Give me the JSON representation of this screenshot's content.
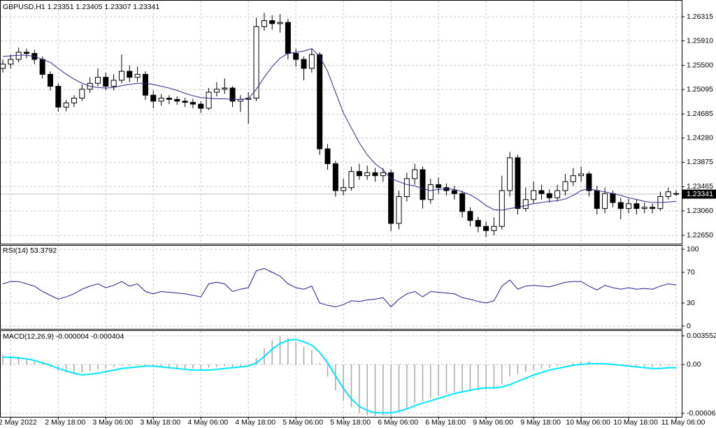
{
  "chart_data": [
    {
      "type": "candlestick",
      "title": "GBPUSD,H1  1.23351 1.23405 1.23307 1.23341",
      "categories": [
        null,
        "2 May 2022",
        null,
        null,
        null,
        null,
        null,
        "2 May 18:00",
        null,
        null,
        null,
        null,
        null,
        "3 May 06:00",
        null,
        null,
        null,
        null,
        null,
        "3 May 18:00",
        null,
        null,
        null,
        null,
        null,
        "4 May 06:00",
        null,
        null,
        null,
        null,
        null,
        "4 May 18:00",
        null,
        null,
        null,
        null,
        null,
        "5 May 06:00",
        null,
        null,
        null,
        null,
        null,
        "5 May 18:00",
        null,
        null,
        null,
        null,
        null,
        "6 May 06:00",
        null,
        null,
        null,
        null,
        null,
        "6 May 18:00",
        null,
        null,
        null,
        null,
        null,
        "9 May 06:00",
        null,
        null,
        null,
        null,
        null,
        "9 May 18:00",
        null,
        null,
        null,
        null,
        null,
        "10 May 06:00",
        null,
        null,
        null,
        null,
        null,
        "10 May 18:00",
        null,
        null,
        null,
        null,
        null,
        "11 May 06:00"
      ],
      "open": [
        1.2545,
        1.2552,
        1.256,
        1.2572,
        1.257,
        1.256,
        1.2535,
        1.2515,
        1.248,
        1.2487,
        1.2495,
        1.251,
        1.252,
        1.253,
        1.2515,
        1.2525,
        1.254,
        1.253,
        1.2535,
        1.25,
        1.249,
        1.2495,
        1.2493,
        1.249,
        1.2488,
        1.2485,
        1.2478,
        1.2505,
        1.251,
        1.2512,
        1.249,
        1.2493,
        1.2495,
        1.2615,
        1.2625,
        1.262,
        1.2622,
        1.257,
        1.256,
        1.2545,
        1.2568,
        1.241,
        1.2385,
        1.234,
        1.2345,
        1.2372,
        1.2365,
        1.237,
        1.2365,
        1.237,
        1.2285,
        1.233,
        1.236,
        1.2375,
        1.2325,
        1.235,
        1.2345,
        1.234,
        1.2335,
        1.2305,
        1.229,
        1.228,
        1.2273,
        1.228,
        1.234,
        1.2395,
        1.231,
        1.2325,
        1.234,
        1.2335,
        1.2328,
        1.234,
        1.2355,
        1.2365,
        1.2368,
        1.234,
        1.231,
        1.2335,
        1.232,
        1.231,
        1.2318,
        1.231,
        1.2312,
        1.231,
        1.233,
        1.23351
      ],
      "high": [
        1.256,
        1.2568,
        1.258,
        1.2578,
        1.2576,
        1.2565,
        1.254,
        1.252,
        1.2492,
        1.25,
        1.2518,
        1.253,
        1.2545,
        1.2538,
        1.2535,
        1.2568,
        1.255,
        1.2548,
        1.254,
        1.2508,
        1.2502,
        1.25,
        1.2498,
        1.2496,
        1.2494,
        1.249,
        1.2512,
        1.2522,
        1.2528,
        1.2515,
        1.25,
        1.2505,
        1.263,
        1.2638,
        1.2634,
        1.2636,
        1.2628,
        1.2578,
        1.2565,
        1.2578,
        1.2572,
        1.2418,
        1.239,
        1.236,
        1.238,
        1.2385,
        1.2382,
        1.2378,
        1.2378,
        1.2375,
        1.234,
        1.237,
        1.2385,
        1.238,
        1.236,
        1.2362,
        1.2352,
        1.2348,
        1.234,
        1.2312,
        1.2296,
        1.2288,
        1.2295,
        1.2365,
        1.2405,
        1.24,
        1.2345,
        1.2355,
        1.235,
        1.2342,
        1.235,
        1.2368,
        1.2378,
        1.238,
        1.2372,
        1.2348,
        1.2345,
        1.234,
        1.2328,
        1.2326,
        1.2325,
        1.232,
        1.2318,
        1.2338,
        1.2345,
        1.23405
      ],
      "low": [
        1.2538,
        1.2545,
        1.2555,
        1.2562,
        1.2552,
        1.2528,
        1.2508,
        1.2472,
        1.2473,
        1.248,
        1.249,
        1.2504,
        1.2515,
        1.2508,
        1.2508,
        1.252,
        1.2522,
        1.2522,
        1.2492,
        1.2478,
        1.2482,
        1.2485,
        1.2484,
        1.248,
        1.2478,
        1.247,
        1.2475,
        1.2498,
        1.2502,
        1.248,
        1.2472,
        1.2452,
        1.249,
        1.2608,
        1.261,
        1.2605,
        1.256,
        1.2548,
        1.2525,
        1.2538,
        1.24,
        1.2375,
        1.233,
        1.2332,
        1.234,
        1.2358,
        1.2358,
        1.2355,
        1.2355,
        1.2272,
        1.2275,
        1.2322,
        1.235,
        1.231,
        1.2318,
        1.2335,
        1.2332,
        1.2325,
        1.2295,
        1.228,
        1.227,
        1.2262,
        1.2265,
        1.2275,
        1.233,
        1.23,
        1.2305,
        1.2318,
        1.2325,
        1.232,
        1.2322,
        1.2332,
        1.2348,
        1.2355,
        1.233,
        1.23,
        1.2302,
        1.2312,
        1.2292,
        1.2302,
        1.23,
        1.2302,
        1.2302,
        1.2306,
        1.2325,
        1.23307
      ],
      "close": [
        1.2552,
        1.256,
        1.2572,
        1.257,
        1.256,
        1.2535,
        1.2515,
        1.248,
        1.2487,
        1.2495,
        1.251,
        1.252,
        1.253,
        1.2515,
        1.2525,
        1.254,
        1.253,
        1.2535,
        1.25,
        1.249,
        1.2495,
        1.2493,
        1.249,
        1.2488,
        1.2485,
        1.2478,
        1.2505,
        1.251,
        1.2512,
        1.249,
        1.2493,
        1.2495,
        1.2615,
        1.2625,
        1.262,
        1.2622,
        1.257,
        1.256,
        1.2545,
        1.2568,
        1.241,
        1.2385,
        1.234,
        1.2345,
        1.2372,
        1.2365,
        1.237,
        1.2365,
        1.237,
        1.2285,
        1.233,
        1.236,
        1.2375,
        1.2325,
        1.235,
        1.2345,
        1.234,
        1.2335,
        1.2305,
        1.229,
        1.228,
        1.2273,
        1.228,
        1.234,
        1.2395,
        1.231,
        1.2325,
        1.234,
        1.2335,
        1.2328,
        1.234,
        1.2355,
        1.2365,
        1.2368,
        1.234,
        1.231,
        1.2335,
        1.232,
        1.231,
        1.2318,
        1.231,
        1.2312,
        1.231,
        1.233,
        1.2338,
        1.23341
      ],
      "overlay": {
        "color": "#2a2a8c",
        "values": [
          1.2565,
          1.2566,
          1.2567,
          1.2567,
          1.2565,
          1.256,
          1.2555,
          1.2545,
          1.2535,
          1.2527,
          1.252,
          1.2515,
          1.2513,
          1.2512,
          1.2513,
          1.2516,
          1.2518,
          1.252,
          1.252,
          1.2518,
          1.2515,
          1.2512,
          1.2508,
          1.2503,
          1.2499,
          1.2496,
          1.2495,
          1.2494,
          1.2494,
          1.2493,
          1.2493,
          1.2494,
          1.251,
          1.253,
          1.2548,
          1.2562,
          1.257,
          1.2572,
          1.2574,
          1.2578,
          1.2565,
          1.254,
          1.2505,
          1.247,
          1.2445,
          1.242,
          1.24,
          1.2385,
          1.2375,
          1.236,
          1.2355,
          1.235,
          1.2348,
          1.2343,
          1.234,
          1.2342,
          1.2343,
          1.2342,
          1.2338,
          1.2333,
          1.2325,
          1.2315,
          1.2308,
          1.2307,
          1.231,
          1.2312,
          1.2315,
          1.2318,
          1.232,
          1.2322,
          1.2323,
          1.2326,
          1.2332,
          1.234,
          1.2343,
          1.234,
          1.2338,
          1.2335,
          1.2332,
          1.2328,
          1.2325,
          1.2322,
          1.232,
          1.232,
          1.2321,
          1.2322
        ]
      },
      "last_price": 1.23341,
      "ylim": [
        1.2251,
        1.26596
      ],
      "yticks": [
        1.26315,
        {
          "value": 1.2591,
          "label": "1.25910"
        },
        {
          "value": 1.255,
          "label": "1.25500"
        },
        1.25095,
        1.24685,
        {
          "value": 1.2428,
          "label": "1.24280"
        },
        1.23875,
        1.23465,
        {
          "value": 1.2306,
          "label": "1.23060"
        },
        {
          "value": 1.2265,
          "label": "1.22650"
        }
      ],
      "grid": true
    },
    {
      "type": "line",
      "title": "RSI(14) 53.3792",
      "color": "#1f1f8f",
      "values": [
        55,
        58,
        58,
        55,
        52,
        45,
        40,
        35,
        38,
        42,
        48,
        52,
        55,
        50,
        53,
        58,
        52,
        55,
        45,
        42,
        45,
        44,
        43,
        42,
        40,
        38,
        55,
        57,
        55,
        45,
        48,
        50,
        72,
        75,
        70,
        65,
        55,
        50,
        48,
        52,
        30,
        27,
        25,
        28,
        33,
        32,
        34,
        35,
        37,
        25,
        35,
        42,
        45,
        38,
        45,
        44,
        43,
        42,
        37,
        35,
        32,
        30,
        33,
        52,
        60,
        48,
        52,
        53,
        52,
        51,
        54,
        57,
        58,
        58,
        52,
        47,
        53,
        50,
        48,
        50,
        48,
        49,
        48,
        52,
        55,
        53.3792
      ],
      "ylim": [
        0,
        100
      ],
      "yticks": [
        100,
        70,
        30,
        0
      ],
      "grid": true
    },
    {
      "type": "macd",
      "title": "MACD(12,26,9) -0.000004 -0.000404",
      "histogram": {
        "color": "#a8a8a8",
        "values": [
          0.0012,
          0.0011,
          0.001,
          0.0008,
          0.0005,
          0.0001,
          -0.0003,
          -0.0008,
          -0.001,
          -0.0011,
          -0.001,
          -0.0008,
          -0.0006,
          -0.0005,
          -0.0003,
          -0.0002,
          -0.0002,
          -0.0001,
          -0.0002,
          -0.0003,
          -0.0003,
          -0.0004,
          -0.0004,
          -0.0005,
          -0.0005,
          -0.0006,
          -0.0004,
          -0.0003,
          -0.0002,
          -0.0003,
          -0.0002,
          -0.0001,
          0.0008,
          0.002,
          0.003,
          0.0035,
          0.0033,
          0.0028,
          0.0022,
          0.0018,
          0.0002,
          -0.0015,
          -0.0032,
          -0.0045,
          -0.0053,
          -0.006,
          -0.0063,
          -0.0064,
          -0.0063,
          -0.0064,
          -0.006,
          -0.0054,
          -0.0048,
          -0.0046,
          -0.0042,
          -0.0039,
          -0.0036,
          -0.0034,
          -0.0033,
          -0.0033,
          -0.0032,
          -0.0031,
          -0.003,
          -0.0024,
          -0.0015,
          -0.0012,
          -0.0009,
          -0.0006,
          -0.0005,
          -0.0004,
          -0.0002,
          0,
          0.0002,
          0.0004,
          0.0004,
          0.0002,
          0.0001,
          0,
          -0.0001,
          -0.0002,
          -0.0003,
          -0.0003,
          -0.0003,
          -0.0002,
          -0.0001,
          -4e-06
        ]
      },
      "signal": {
        "color": "#00e6ff",
        "values": [
          0.0009,
          0.0009,
          0.0008,
          0.0007,
          0.0005,
          0.0002,
          -0.0001,
          -0.0005,
          -0.0008,
          -0.0011,
          -0.0013,
          -0.0012,
          -0.0011,
          -0.0009,
          -0.0007,
          -0.0005,
          -0.0004,
          -0.0003,
          -0.0002,
          -0.0002,
          -0.0003,
          -0.0004,
          -0.0005,
          -0.0006,
          -0.0007,
          -0.0007,
          -0.0007,
          -0.0006,
          -0.0005,
          -0.0004,
          -0.0003,
          -0.0002,
          0.0002,
          0.001,
          0.0019,
          0.0026,
          0.003,
          0.0031,
          0.0028,
          0.0024,
          0.0015,
          0.0002,
          -0.0014,
          -0.003,
          -0.0043,
          -0.0052,
          -0.0057,
          -0.006,
          -0.006,
          -0.006,
          -0.0058,
          -0.0055,
          -0.0051,
          -0.0048,
          -0.0045,
          -0.0042,
          -0.0039,
          -0.0036,
          -0.0034,
          -0.0032,
          -0.003,
          -0.0029,
          -0.0029,
          -0.0028,
          -0.0025,
          -0.0021,
          -0.0017,
          -0.0013,
          -0.001,
          -0.0007,
          -0.0005,
          -0.0003,
          -0.0001,
          0,
          0.0001,
          0.0001,
          0.0001,
          0,
          -0.0001,
          -0.0002,
          -0.0003,
          -0.0004,
          -0.0005,
          -0.0005,
          -0.0004,
          -0.000404
        ]
      },
      "ylim": [
        -0.006061,
        0.003552
      ],
      "yticks": [
        0.003552,
        {
          "value": 0,
          "label": "0.00"
        },
        -0.006061
      ],
      "grid": true
    }
  ]
}
